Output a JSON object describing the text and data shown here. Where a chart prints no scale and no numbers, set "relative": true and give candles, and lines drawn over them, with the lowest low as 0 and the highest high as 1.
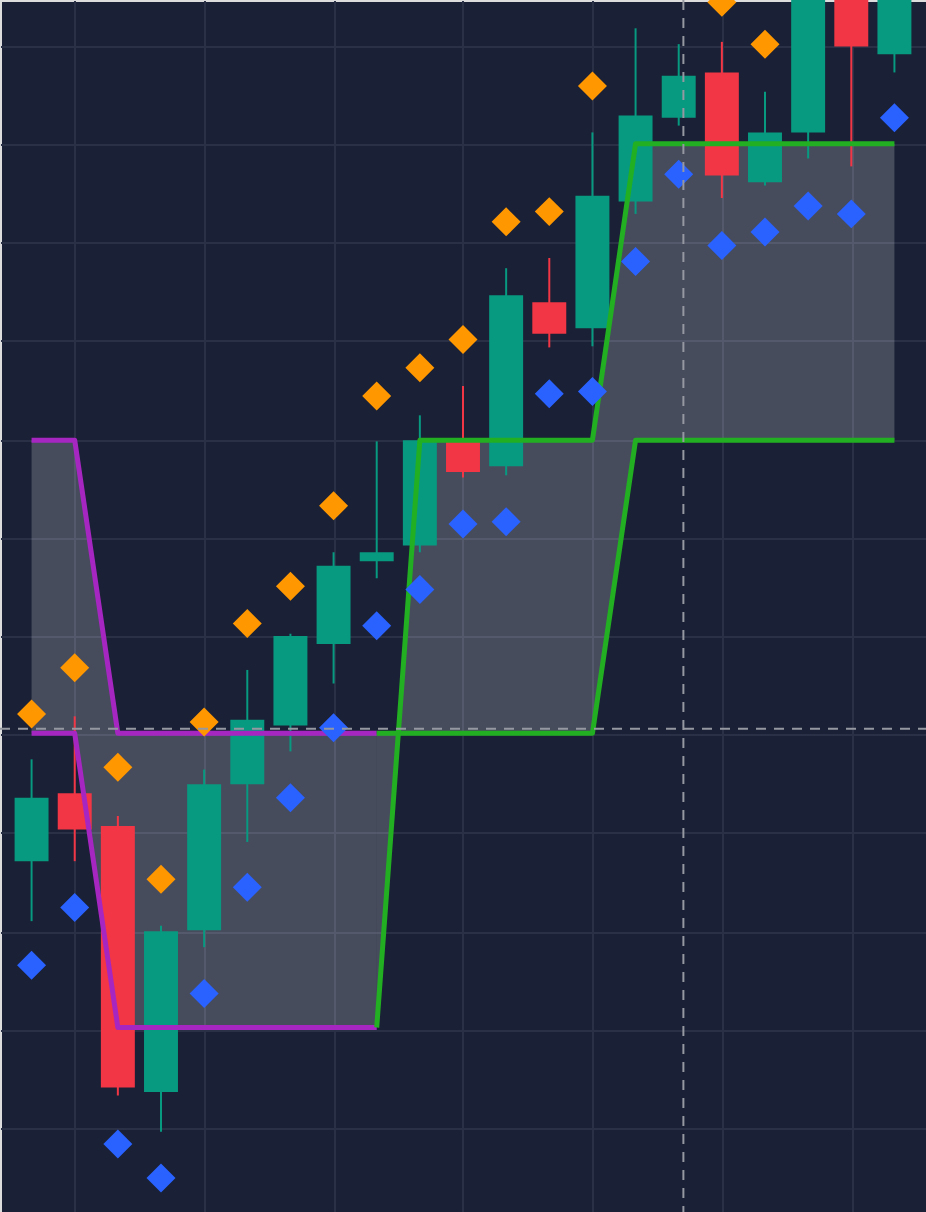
{
  "chart_data": {
    "type": "candlestick",
    "relative": true,
    "grid": true,
    "ylim": [
      -0.071,
      1
    ],
    "categories": [
      null,
      null,
      null,
      null,
      null,
      null,
      null,
      null,
      null,
      null,
      null,
      null,
      null,
      null,
      null,
      null,
      null,
      null,
      null,
      null,
      null
    ],
    "ohlc": [
      [
        0.239,
        0.329,
        0.186,
        0.295
      ],
      [
        0.299,
        0.367,
        0.239,
        0.267
      ],
      [
        0.27,
        0.279,
        0.032,
        0.039
      ],
      [
        0.035,
        0.182,
        0,
        0.177
      ],
      [
        0.178,
        0.32,
        0.163,
        0.307
      ],
      [
        0.307,
        0.408,
        0.256,
        0.364
      ],
      [
        0.359,
        0.44,
        0.336,
        0.438
      ],
      [
        0.431,
        0.512,
        0.396,
        0.5
      ],
      [
        0.504,
        0.61,
        0.489,
        0.512
      ],
      [
        0.518,
        0.633,
        0.512,
        0.611
      ],
      [
        0.613,
        0.659,
        0.578,
        0.583
      ],
      [
        0.588,
        0.763,
        0.58,
        0.739
      ],
      [
        0.733,
        0.772,
        0.693,
        0.705
      ],
      [
        0.71,
        0.883,
        0.694,
        0.827
      ],
      [
        0.822,
        0.975,
        0.811,
        0.898
      ],
      [
        0.896,
        0.961,
        0.889,
        0.933
      ],
      [
        0.936,
        0.963,
        0.825,
        0.845
      ],
      [
        0.839,
        0.919,
        0.836,
        0.883
      ],
      [
        0.883,
        1,
        0.86,
        1
      ],
      [
        1,
        1,
        0.853,
        0.959
      ],
      [
        0.952,
        1,
        0.936,
        1
      ]
    ],
    "colors": [
      "#089981",
      "#f23645",
      "#f23645",
      "#089981",
      "#089981",
      "#089981",
      "#089981",
      "#089981",
      "#089981",
      "#089981",
      "#f23645",
      "#089981",
      "#f23645",
      "#089981",
      "#089981",
      "#089981",
      "#f23645",
      "#089981",
      "#089981",
      "#f23645",
      "#089981"
    ],
    "series": [
      {
        "type": "line",
        "color": "#a626c2",
        "values": [
          0.611,
          0.611,
          0.352,
          0.352,
          0.352,
          0.352,
          0.352,
          0.352,
          0.352,
          null,
          null,
          null,
          null,
          null,
          null,
          null,
          null,
          null,
          null,
          null,
          null
        ],
        "upper": [
          0.611,
          0.611,
          0.352,
          0.352,
          0.352,
          0.352,
          0.352,
          0.352,
          0.352,
          null,
          null,
          null,
          null,
          null,
          null,
          null,
          null,
          null,
          null,
          null,
          null
        ],
        "lower": [
          0.352,
          0.352,
          0.092,
          0.092,
          0.092,
          0.092,
          0.092,
          0.092,
          0.092,
          null,
          null,
          null,
          null,
          null,
          null,
          null,
          null,
          null,
          null,
          null,
          null
        ]
      },
      {
        "type": "line",
        "color": "#a626c2",
        "values": [
          0.352,
          0.352,
          0.092,
          0.092,
          0.092,
          0.092,
          0.092,
          0.092,
          0.092,
          null,
          null,
          null,
          null,
          null,
          null,
          null,
          null,
          null,
          null,
          null,
          null
        ]
      },
      {
        "type": "line",
        "color": "#22b022",
        "values": [
          null,
          null,
          null,
          null,
          null,
          null,
          null,
          null,
          0.092,
          0.611,
          0.611,
          0.611,
          0.611,
          0.611,
          0.873,
          0.873,
          0.873,
          0.873,
          0.873,
          0.873,
          0.873
        ],
        "upper": [
          null,
          null,
          null,
          null,
          null,
          null,
          null,
          null,
          0.092,
          0.611,
          0.611,
          0.611,
          0.611,
          0.611,
          0.873,
          0.873,
          0.873,
          0.873,
          0.873,
          0.873,
          0.873
        ],
        "lower": [
          null,
          null,
          null,
          null,
          null,
          null,
          null,
          null,
          0.352,
          0.352,
          0.352,
          0.352,
          0.352,
          0.352,
          0.611,
          0.611,
          0.611,
          0.611,
          0.611,
          0.611,
          0.611
        ]
      },
      {
        "type": "line",
        "color": "#22b022",
        "values": [
          null,
          null,
          null,
          null,
          null,
          null,
          null,
          null,
          0.352,
          0.352,
          0.352,
          0.352,
          0.352,
          0.352,
          0.611,
          0.611,
          0.611,
          0.611,
          0.611,
          0.611,
          0.611
        ]
      },
      {
        "type": "scatter",
        "color": "#ff9800",
        "marker": "diamond",
        "values": [
          0.369,
          0.41,
          0.322,
          0.223,
          0.362,
          0.449,
          0.482,
          0.553,
          0.65,
          0.675,
          0.7,
          0.804,
          0.813,
          0.924,
          null,
          null,
          0.998,
          0.961,
          null,
          null,
          null
        ]
      },
      {
        "type": "scatter",
        "color": "#2962ff",
        "marker": "diamond",
        "values": [
          0.147,
          0.198,
          -0.011,
          -0.041,
          0.122,
          0.216,
          0.295,
          0.357,
          0.447,
          0.479,
          0.537,
          0.539,
          0.652,
          0.654,
          0.769,
          0.846,
          0.783,
          0.795,
          0.818,
          0.811,
          0.896
        ]
      }
    ],
    "ref_lines": [
      {
        "axis": "y",
        "value": 0.356,
        "color": "#9598a1",
        "line_style": "dashed"
      }
    ]
  }
}
